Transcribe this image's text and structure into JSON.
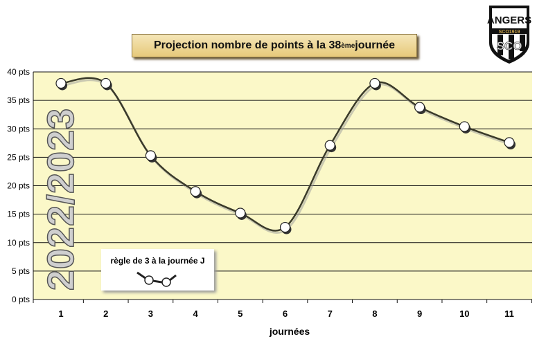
{
  "chart_data": {
    "type": "line",
    "title_main": "Projection nombre de points à la  38",
    "title_sup": "ème",
    "title_end": " journée",
    "xlabel": "journées",
    "ylabel": "",
    "categories": [
      "1",
      "2",
      "3",
      "4",
      "5",
      "6",
      "7",
      "8",
      "9",
      "10",
      "11"
    ],
    "values": [
      38,
      38,
      25.3,
      19,
      15.2,
      12.7,
      27.1,
      38,
      33.8,
      30.4,
      27.6
    ],
    "yticks": [
      "0 pts",
      "5 pts",
      "10 pts",
      "15 pts",
      "20 pts",
      "25 pts",
      "30 pts",
      "35 pts",
      "40 pts"
    ],
    "ylim": [
      0,
      40
    ],
    "grid": true,
    "smooth": true,
    "legend": {
      "label": "règle de 3 à la journée J",
      "placement": "bottom-left"
    },
    "colors": {
      "line": "#3a3a2a",
      "plot_bg": "#fbf8c8",
      "marker": "#ffffff"
    }
  },
  "season": "2022/2023",
  "logo": {
    "text": "ANGERS",
    "sub": "SCO1919",
    "mono": "SCO"
  }
}
